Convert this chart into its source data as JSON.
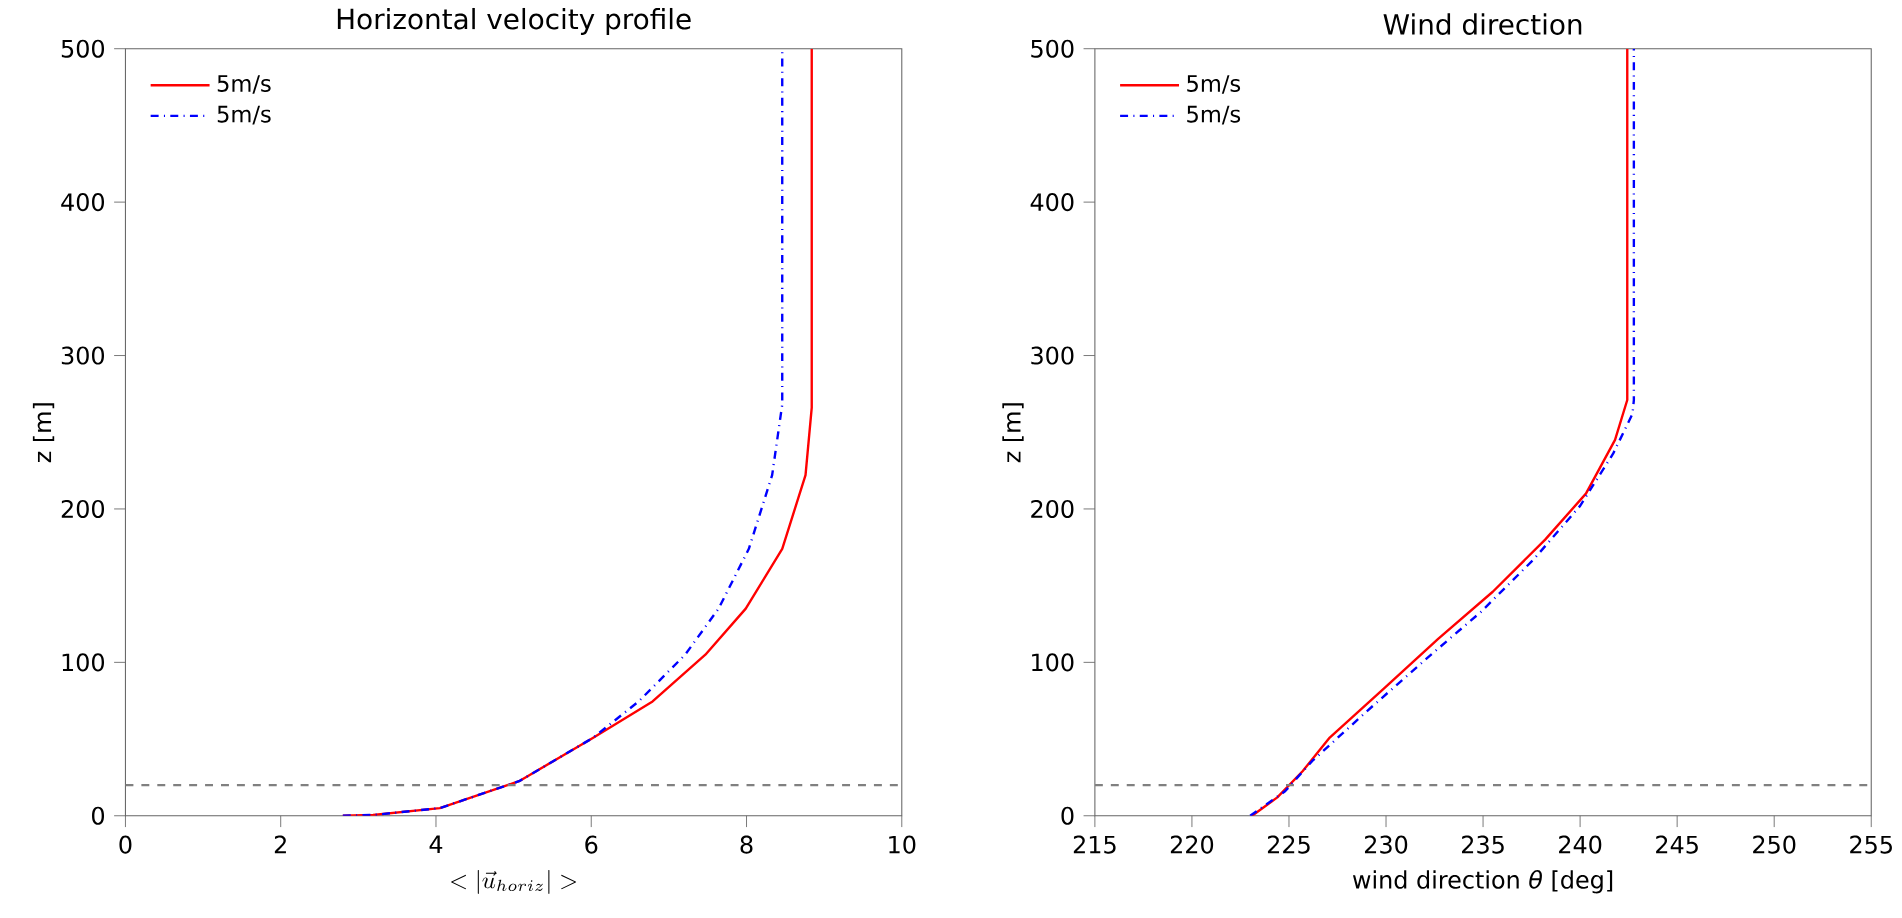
{
  "chart_data": [
    {
      "type": "line",
      "title": "Horizontal velocity profile",
      "xlabel": "<|\\vec{u}_{horiz}|>",
      "ylabel": "z [m]",
      "xlim": [
        0,
        10
      ],
      "ylim": [
        0,
        500
      ],
      "xticks": [
        0,
        2,
        4,
        6,
        8,
        10
      ],
      "yticks": [
        0,
        100,
        200,
        300,
        400,
        500
      ],
      "legend": "top left",
      "grid": false,
      "series": [
        {
          "name": "5m/s",
          "color": "#ff0000",
          "line_style": "solid",
          "x": [
            2.8,
            3.19,
            4.05,
            5.07,
            6.02,
            6.79,
            7.47,
            7.99,
            8.46,
            8.76,
            8.84,
            8.84
          ],
          "values": [
            0,
            0.5,
            5,
            22.5,
            50.7,
            74.5,
            105,
            135,
            174,
            222,
            266,
            500
          ]
        },
        {
          "name": "5m/s",
          "color": "#0000ff",
          "line_style": "dashdot",
          "x": [
            2.8,
            3.19,
            4.05,
            5.07,
            6.02,
            6.61,
            7.21,
            7.64,
            8.03,
            8.33,
            8.44,
            8.46,
            8.46
          ],
          "values": [
            0,
            0.5,
            5,
            22.5,
            50.7,
            74.5,
            105,
            135,
            174,
            222,
            261,
            268,
            500
          ]
        }
      ],
      "ref_lines": [
        {
          "axis": "y",
          "value": 20,
          "color": "#808080",
          "line_style": "dashed"
        }
      ]
    },
    {
      "type": "line",
      "title": "Wind direction",
      "xlabel": "wind direction *θ* [deg]",
      "ylabel": "z [m]",
      "xlim": [
        215,
        255
      ],
      "ylim": [
        0,
        500
      ],
      "xticks": [
        215,
        220,
        225,
        230,
        235,
        240,
        245,
        250,
        255
      ],
      "yticks": [
        0,
        100,
        200,
        300,
        400,
        500
      ],
      "legend": "top left",
      "grid": false,
      "series": [
        {
          "name": "5m/s",
          "color": "#ff0000",
          "line_style": "solid",
          "x": [
            223.1,
            224.4,
            225.7,
            227.1,
            229.9,
            232.7,
            235.5,
            238.2,
            240.3,
            241.8,
            242.43,
            242.43
          ],
          "values": [
            0,
            12,
            29,
            51,
            83,
            115.5,
            146,
            180,
            210,
            245,
            271,
            500
          ]
        },
        {
          "name": "5m/s",
          "color": "#0000ff",
          "line_style": "dashdot",
          "x": [
            223.0,
            224.8,
            226.2,
            229.0,
            232.1,
            234.9,
            237.6,
            240.0,
            241.7,
            242.7,
            242.77,
            242.77
          ],
          "values": [
            0,
            16,
            35.7,
            68,
            102.6,
            133,
            167,
            202,
            236,
            262,
            271,
            500
          ]
        }
      ],
      "ref_lines": [
        {
          "axis": "y",
          "value": 20,
          "color": "#808080",
          "line_style": "dashed"
        }
      ]
    }
  ]
}
